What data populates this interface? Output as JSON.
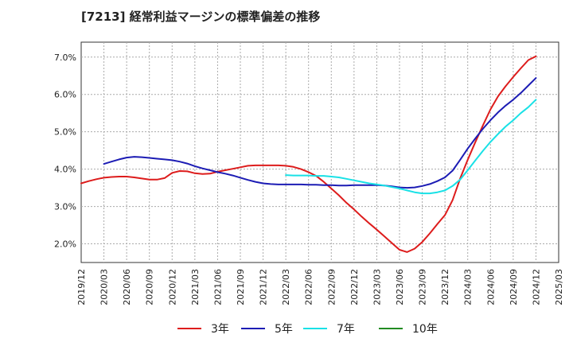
{
  "chart_data": {
    "type": "line",
    "title": "[7213]  経常利益マージンの標準偏差の推移",
    "xlabel": "",
    "ylabel": "",
    "ylim": [
      1.5,
      7.4
    ],
    "x_range": [
      "2019-12",
      "2025-03"
    ],
    "x_ticks": [
      "2019/12",
      "2020/03",
      "2020/06",
      "2020/09",
      "2020/12",
      "2021/03",
      "2021/06",
      "2021/09",
      "2021/12",
      "2022/03",
      "2022/06",
      "2022/09",
      "2022/12",
      "2023/03",
      "2023/06",
      "2023/09",
      "2023/12",
      "2024/03",
      "2024/06",
      "2024/09",
      "2024/12",
      "2025/03"
    ],
    "y_ticks": [
      {
        "value": 2.0,
        "label": "2.0%"
      },
      {
        "value": 3.0,
        "label": "3.0%"
      },
      {
        "value": 4.0,
        "label": "4.0%"
      },
      {
        "value": 5.0,
        "label": "5.0%"
      },
      {
        "value": 6.0,
        "label": "6.0%"
      },
      {
        "value": 7.0,
        "label": "7.0%"
      }
    ],
    "grid": true,
    "legend_position": "bottom",
    "series": [
      {
        "name": "3年",
        "color": "#dd1c1c",
        "points": [
          [
            "2019-12",
            3.62
          ],
          [
            "2020-01",
            3.68
          ],
          [
            "2020-02",
            3.73
          ],
          [
            "2020-03",
            3.77
          ],
          [
            "2020-04",
            3.79
          ],
          [
            "2020-05",
            3.8
          ],
          [
            "2020-06",
            3.8
          ],
          [
            "2020-07",
            3.78
          ],
          [
            "2020-08",
            3.75
          ],
          [
            "2020-09",
            3.72
          ],
          [
            "2020-10",
            3.72
          ],
          [
            "2020-11",
            3.76
          ],
          [
            "2020-12",
            3.9
          ],
          [
            "2021-01",
            3.95
          ],
          [
            "2021-02",
            3.94
          ],
          [
            "2021-03",
            3.89
          ],
          [
            "2021-04",
            3.87
          ],
          [
            "2021-05",
            3.88
          ],
          [
            "2021-06",
            3.93
          ],
          [
            "2021-07",
            3.97
          ],
          [
            "2021-08",
            4.01
          ],
          [
            "2021-09",
            4.05
          ],
          [
            "2021-10",
            4.09
          ],
          [
            "2021-11",
            4.1
          ],
          [
            "2021-12",
            4.1
          ],
          [
            "2022-01",
            4.1
          ],
          [
            "2022-02",
            4.1
          ],
          [
            "2022-03",
            4.09
          ],
          [
            "2022-04",
            4.06
          ],
          [
            "2022-05",
            4.0
          ],
          [
            "2022-06",
            3.92
          ],
          [
            "2022-07",
            3.82
          ],
          [
            "2022-08",
            3.66
          ],
          [
            "2022-09",
            3.48
          ],
          [
            "2022-10",
            3.3
          ],
          [
            "2022-11",
            3.1
          ],
          [
            "2022-12",
            2.92
          ],
          [
            "2023-01",
            2.73
          ],
          [
            "2023-02",
            2.55
          ],
          [
            "2023-03",
            2.38
          ],
          [
            "2023-04",
            2.2
          ],
          [
            "2023-05",
            2.02
          ],
          [
            "2023-06",
            1.84
          ],
          [
            "2023-07",
            1.78
          ],
          [
            "2023-08",
            1.87
          ],
          [
            "2023-09",
            2.05
          ],
          [
            "2023-10",
            2.28
          ],
          [
            "2023-11",
            2.53
          ],
          [
            "2023-12",
            2.77
          ],
          [
            "2024-01",
            3.17
          ],
          [
            "2024-02",
            3.75
          ],
          [
            "2024-03",
            4.25
          ],
          [
            "2024-04",
            4.72
          ],
          [
            "2024-05",
            5.17
          ],
          [
            "2024-06",
            5.6
          ],
          [
            "2024-07",
            5.95
          ],
          [
            "2024-08",
            6.22
          ],
          [
            "2024-09",
            6.47
          ],
          [
            "2024-10",
            6.7
          ],
          [
            "2024-11",
            6.92
          ],
          [
            "2024-12",
            7.02
          ]
        ]
      },
      {
        "name": "5年",
        "color": "#1c1cb4",
        "points": [
          [
            "2020-03",
            4.14
          ],
          [
            "2020-04",
            4.2
          ],
          [
            "2020-05",
            4.26
          ],
          [
            "2020-06",
            4.31
          ],
          [
            "2020-07",
            4.33
          ],
          [
            "2020-08",
            4.32
          ],
          [
            "2020-09",
            4.3
          ],
          [
            "2020-10",
            4.28
          ],
          [
            "2020-11",
            4.26
          ],
          [
            "2020-12",
            4.24
          ],
          [
            "2021-01",
            4.2
          ],
          [
            "2021-02",
            4.15
          ],
          [
            "2021-03",
            4.08
          ],
          [
            "2021-04",
            4.02
          ],
          [
            "2021-05",
            3.97
          ],
          [
            "2021-06",
            3.92
          ],
          [
            "2021-07",
            3.88
          ],
          [
            "2021-08",
            3.83
          ],
          [
            "2021-09",
            3.77
          ],
          [
            "2021-10",
            3.71
          ],
          [
            "2021-11",
            3.66
          ],
          [
            "2021-12",
            3.62
          ],
          [
            "2022-01",
            3.6
          ],
          [
            "2022-02",
            3.59
          ],
          [
            "2022-03",
            3.59
          ],
          [
            "2022-04",
            3.59
          ],
          [
            "2022-05",
            3.59
          ],
          [
            "2022-06",
            3.58
          ],
          [
            "2022-07",
            3.58
          ],
          [
            "2022-08",
            3.57
          ],
          [
            "2022-09",
            3.57
          ],
          [
            "2022-10",
            3.56
          ],
          [
            "2022-11",
            3.56
          ],
          [
            "2022-12",
            3.57
          ],
          [
            "2023-01",
            3.57
          ],
          [
            "2023-02",
            3.57
          ],
          [
            "2023-03",
            3.57
          ],
          [
            "2023-04",
            3.56
          ],
          [
            "2023-05",
            3.54
          ],
          [
            "2023-06",
            3.51
          ],
          [
            "2023-07",
            3.5
          ],
          [
            "2023-08",
            3.51
          ],
          [
            "2023-09",
            3.55
          ],
          [
            "2023-10",
            3.6
          ],
          [
            "2023-11",
            3.68
          ],
          [
            "2023-12",
            3.78
          ],
          [
            "2024-01",
            3.96
          ],
          [
            "2024-02",
            4.25
          ],
          [
            "2024-03",
            4.55
          ],
          [
            "2024-04",
            4.82
          ],
          [
            "2024-05",
            5.08
          ],
          [
            "2024-06",
            5.31
          ],
          [
            "2024-07",
            5.52
          ],
          [
            "2024-08",
            5.7
          ],
          [
            "2024-09",
            5.86
          ],
          [
            "2024-10",
            6.04
          ],
          [
            "2024-11",
            6.24
          ],
          [
            "2024-12",
            6.44
          ]
        ]
      },
      {
        "name": "7年",
        "color": "#19e1e6",
        "points": [
          [
            "2022-03",
            3.84
          ],
          [
            "2022-04",
            3.83
          ],
          [
            "2022-05",
            3.83
          ],
          [
            "2022-06",
            3.83
          ],
          [
            "2022-07",
            3.82
          ],
          [
            "2022-08",
            3.82
          ],
          [
            "2022-09",
            3.8
          ],
          [
            "2022-10",
            3.78
          ],
          [
            "2022-11",
            3.74
          ],
          [
            "2022-12",
            3.7
          ],
          [
            "2023-01",
            3.66
          ],
          [
            "2023-02",
            3.62
          ],
          [
            "2023-03",
            3.59
          ],
          [
            "2023-04",
            3.56
          ],
          [
            "2023-05",
            3.52
          ],
          [
            "2023-06",
            3.48
          ],
          [
            "2023-07",
            3.43
          ],
          [
            "2023-08",
            3.38
          ],
          [
            "2023-09",
            3.35
          ],
          [
            "2023-10",
            3.35
          ],
          [
            "2023-11",
            3.38
          ],
          [
            "2023-12",
            3.43
          ],
          [
            "2024-01",
            3.55
          ],
          [
            "2024-02",
            3.72
          ],
          [
            "2024-03",
            3.97
          ],
          [
            "2024-04",
            4.23
          ],
          [
            "2024-05",
            4.49
          ],
          [
            "2024-06",
            4.73
          ],
          [
            "2024-07",
            4.94
          ],
          [
            "2024-08",
            5.14
          ],
          [
            "2024-09",
            5.31
          ],
          [
            "2024-10",
            5.5
          ],
          [
            "2024-11",
            5.66
          ],
          [
            "2024-12",
            5.86
          ]
        ]
      },
      {
        "name": "10年",
        "color": "#228b22",
        "points": []
      }
    ]
  }
}
